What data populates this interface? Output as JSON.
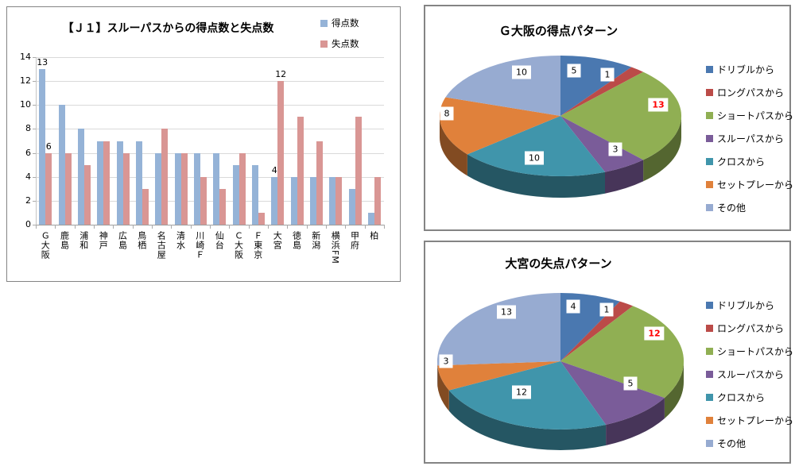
{
  "chart_data": [
    {
      "type": "bar",
      "title": "【Ｊ１】スルーパスからの得点数と失点数",
      "categories": [
        "Ｇ大阪",
        "鹿島",
        "浦和",
        "神戸",
        "広島",
        "鳥栖",
        "名古屋",
        "清水",
        "川崎Ｆ",
        "仙台",
        "Ｃ大阪",
        "Ｆ東京",
        "大宮",
        "徳島",
        "新潟",
        "横浜FM",
        "甲府",
        "柏"
      ],
      "series": [
        {
          "name": "得点数",
          "color": "#95B3D7",
          "values": [
            13,
            10,
            8,
            7,
            7,
            7,
            6,
            6,
            6,
            6,
            5,
            5,
            4,
            4,
            4,
            4,
            3,
            1
          ]
        },
        {
          "name": "失点数",
          "color": "#D99694",
          "values": [
            6,
            6,
            5,
            7,
            6,
            3,
            8,
            6,
            4,
            3,
            6,
            1,
            12,
            9,
            7,
            4,
            9,
            4
          ]
        }
      ],
      "ylim": [
        0,
        14
      ],
      "ytick_step": 2,
      "yticks": [
        0,
        2,
        4,
        6,
        8,
        10,
        12,
        14
      ],
      "grid": true,
      "legend_position": "top-right",
      "data_labels": [
        {
          "category": "Ｇ大阪",
          "series": "得点数",
          "value": 13
        },
        {
          "category": "Ｇ大阪",
          "series": "失点数",
          "value": 6
        },
        {
          "category": "大宮",
          "series": "得点数",
          "value": 4
        },
        {
          "category": "大宮",
          "series": "失点数",
          "value": 12
        }
      ]
    },
    {
      "type": "pie",
      "style": "3d",
      "title": "Ｇ大阪の得点パターン",
      "legend_position": "right",
      "labels": [
        "ドリブルから",
        "ロングパスから",
        "ショートパスから",
        "スルーパスから",
        "クロスから",
        "セットプレーから",
        "その他"
      ],
      "values": [
        5,
        1,
        13,
        3,
        10,
        8,
        10
      ],
      "colors": [
        "#4A78B0",
        "#BB4B48",
        "#90AF53",
        "#7A5C99",
        "#4095AB",
        "#E0813B",
        "#97ABD1"
      ],
      "highlight_index": 2,
      "highlight_color": "#FF0000"
    },
    {
      "type": "pie",
      "style": "3d",
      "title": "大宮の失点パターン",
      "legend_position": "right",
      "labels": [
        "ドリブルから",
        "ロングパスから",
        "ショートパスから",
        "スルーパスから",
        "クロスから",
        "セットプレーから",
        "その他"
      ],
      "values": [
        4,
        1,
        12,
        5,
        12,
        3,
        13
      ],
      "colors": [
        "#4A78B0",
        "#BB4B48",
        "#90AF53",
        "#7A5C99",
        "#4095AB",
        "#E0813B",
        "#97ABD1"
      ],
      "highlight_index": 2,
      "highlight_color": "#FF0000"
    }
  ]
}
